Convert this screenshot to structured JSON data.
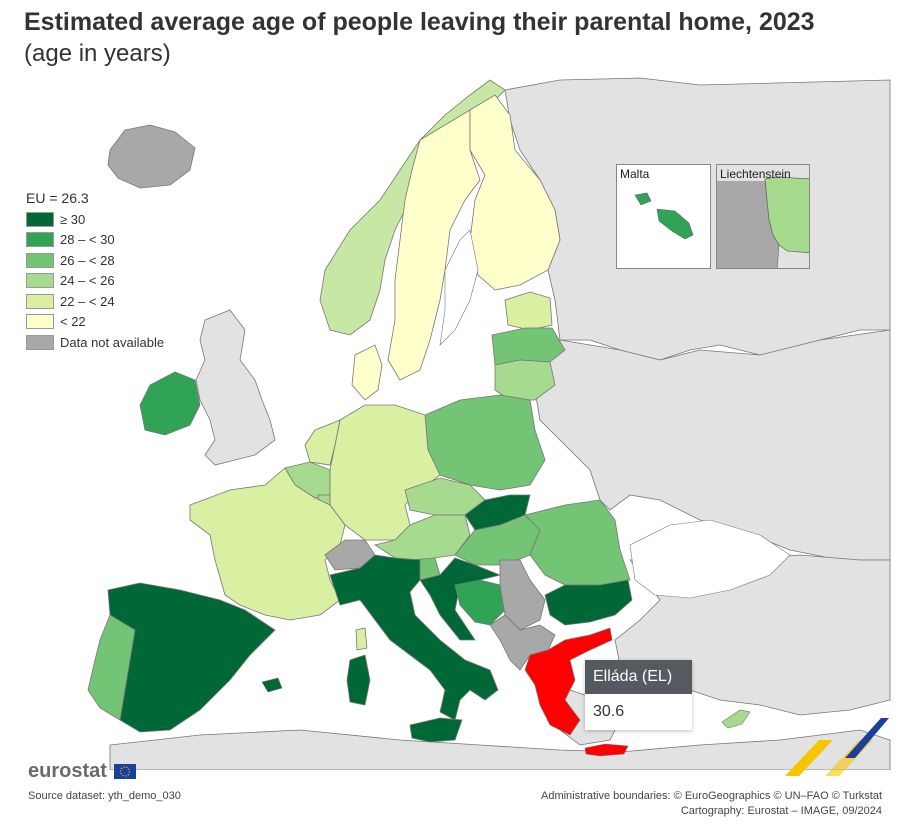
{
  "title": "Estimated average age of people leaving their parental home, 2023",
  "subtitle": "(age in years)",
  "legend": {
    "title": "EU = 26.3",
    "classes": [
      {
        "label": "≥ 30",
        "color": "#006837"
      },
      {
        "label": "28 – < 30",
        "color": "#31a354"
      },
      {
        "label": "26 – < 28",
        "color": "#74c476"
      },
      {
        "label": "24 – < 26",
        "color": "#a6db8f"
      },
      {
        "label": "22 – < 24",
        "color": "#d9f0a3"
      },
      {
        "label": "< 22",
        "color": "#ffffcc"
      },
      {
        "label": "Data not available",
        "color": "#a8a8a8"
      }
    ]
  },
  "insets": {
    "malta": "Malta",
    "liechtenstein": "Liechtenstein"
  },
  "tooltip": {
    "country": "Elláda (EL)",
    "value": "30.6",
    "highlight_color": "#ff0000"
  },
  "colors": {
    "non_eu": "#e2e2e2",
    "sea": "#ffffff",
    "border": "#7a7a7a"
  },
  "logo": {
    "text": "eurostat"
  },
  "source": "Source dataset: yth_demo_030",
  "credits": {
    "line1": "Administrative boundaries: © EuroGeographics © UN–FAO © Turkstat",
    "line2": "Cartography: Eurostat – IMAGE, 09/2024"
  }
}
